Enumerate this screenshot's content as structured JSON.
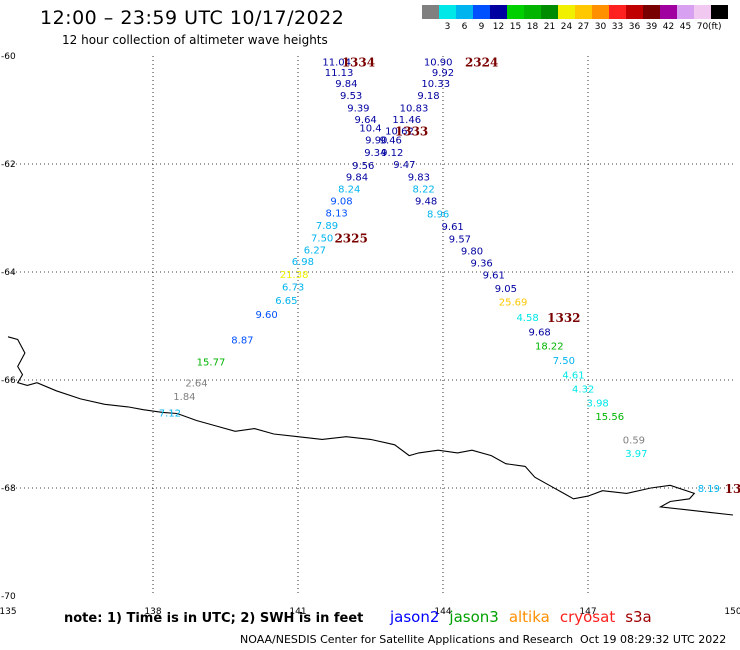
{
  "header": {
    "title": "12:00 – 23:59 UTC 10/17/2022",
    "subtitle": "12 hour collection of altimeter wave heights"
  },
  "color_scale": {
    "unit": "(ft)",
    "bins": [
      {
        "color": "#808080",
        "label": ""
      },
      {
        "color": "#00e8e8",
        "label": "3"
      },
      {
        "color": "#00b4f0",
        "label": "6"
      },
      {
        "color": "#0050ff",
        "label": "9"
      },
      {
        "color": "#0000a0",
        "label": "12"
      },
      {
        "color": "#00d000",
        "label": "15"
      },
      {
        "color": "#00b400",
        "label": "18"
      },
      {
        "color": "#008c00",
        "label": "21"
      },
      {
        "color": "#f0f000",
        "label": "24"
      },
      {
        "color": "#ffc800",
        "label": "27"
      },
      {
        "color": "#ff9000",
        "label": "30"
      },
      {
        "color": "#ff2020",
        "label": "33"
      },
      {
        "color": "#c00000",
        "label": "36"
      },
      {
        "color": "#780000",
        "label": "39"
      },
      {
        "color": "#a000a0",
        "label": "42"
      },
      {
        "color": "#d8a0f0",
        "label": "45"
      },
      {
        "color": "#f0c8f0",
        "label": "70"
      },
      {
        "color": "#000000",
        "label": ""
      }
    ]
  },
  "map": {
    "lon_range": [
      135,
      150
    ],
    "lat_range": [
      -70,
      -60
    ],
    "lon_ticks": [
      "135",
      "138",
      "141",
      "144",
      "147",
      "150"
    ],
    "lat_ticks": [
      "-60",
      "-62",
      "-64",
      "-66",
      "-68",
      "-70"
    ],
    "graticule_lons": [
      138,
      141,
      144,
      147
    ],
    "graticule_lats": [
      -62,
      -64,
      -66,
      -68
    ]
  },
  "observations": [
    {
      "lon": 141.8,
      "lat": -60.1,
      "text": "11.04",
      "color": "#0000a0"
    },
    {
      "lon": 141.85,
      "lat": -60.3,
      "text": "11.13",
      "color": "#0000a0"
    },
    {
      "lon": 142.0,
      "lat": -60.5,
      "text": "9.84",
      "color": "#0000a0"
    },
    {
      "lon": 142.1,
      "lat": -60.72,
      "text": "9.53",
      "color": "#0000a0"
    },
    {
      "lon": 142.25,
      "lat": -60.95,
      "text": "9.39",
      "color": "#0000a0"
    },
    {
      "lon": 142.4,
      "lat": -61.17,
      "text": "9.64",
      "color": "#0000a0"
    },
    {
      "lon": 142.5,
      "lat": -61.32,
      "text": "10.4",
      "color": "#0000a0"
    },
    {
      "lon": 142.62,
      "lat": -61.55,
      "text": "9.90",
      "color": "#0000a0"
    },
    {
      "lon": 142.6,
      "lat": -61.78,
      "text": "9.34",
      "color": "#0000a0"
    },
    {
      "lon": 142.35,
      "lat": -62.02,
      "text": "9.56",
      "color": "#0000a0"
    },
    {
      "lon": 142.22,
      "lat": -62.23,
      "text": "9.84",
      "color": "#0000a0"
    },
    {
      "lon": 142.06,
      "lat": -62.45,
      "text": "8.24",
      "color": "#00b4f0"
    },
    {
      "lon": 141.9,
      "lat": -62.68,
      "text": "9.08",
      "color": "#0050ff"
    },
    {
      "lon": 141.8,
      "lat": -62.9,
      "text": "8.13",
      "color": "#0050ff"
    },
    {
      "lon": 141.6,
      "lat": -63.13,
      "text": "7.89",
      "color": "#00b4f0"
    },
    {
      "lon": 141.5,
      "lat": -63.36,
      "text": "7.50",
      "color": "#00b4f0"
    },
    {
      "lon": 141.35,
      "lat": -63.58,
      "text": "6.27",
      "color": "#00b4f0"
    },
    {
      "lon": 141.1,
      "lat": -63.8,
      "text": "6.98",
      "color": "#00b4f0"
    },
    {
      "lon": 140.92,
      "lat": -64.04,
      "text": "21.38",
      "color": "#f0f000"
    },
    {
      "lon": 140.9,
      "lat": -64.27,
      "text": "6.73",
      "color": "#00b4f0"
    },
    {
      "lon": 140.76,
      "lat": -64.52,
      "text": "6.65",
      "color": "#00b4f0"
    },
    {
      "lon": 140.35,
      "lat": -64.78,
      "text": "9.60",
      "color": "#0050ff"
    },
    {
      "lon": 139.85,
      "lat": -65.25,
      "text": "8.87",
      "color": "#0050ff"
    },
    {
      "lon": 139.2,
      "lat": -65.66,
      "text": "15.77",
      "color": "#00b400"
    },
    {
      "lon": 138.9,
      "lat": -66.05,
      "text": "2.64",
      "color": "#808080"
    },
    {
      "lon": 138.65,
      "lat": -66.3,
      "text": "1.84",
      "color": "#808080"
    },
    {
      "lon": 138.35,
      "lat": -66.6,
      "text": "7.12",
      "color": "#00b4f0"
    },
    {
      "lon": 143.9,
      "lat": -60.1,
      "text": "10.90",
      "color": "#0000a0"
    },
    {
      "lon": 144.0,
      "lat": -60.3,
      "text": "9.92",
      "color": "#0000a0"
    },
    {
      "lon": 143.85,
      "lat": -60.5,
      "text": "10.33",
      "color": "#0000a0"
    },
    {
      "lon": 143.7,
      "lat": -60.72,
      "text": "9.18",
      "color": "#0000a0"
    },
    {
      "lon": 143.4,
      "lat": -60.95,
      "text": "10.83",
      "color": "#0000a0"
    },
    {
      "lon": 143.25,
      "lat": -61.17,
      "text": "11.46",
      "color": "#0000a0"
    },
    {
      "lon": 143.1,
      "lat": -61.38,
      "text": "10.62",
      "color": "#0000a0"
    },
    {
      "lon": 142.92,
      "lat": -61.55,
      "text": "9.46",
      "color": "#0000a0"
    },
    {
      "lon": 142.95,
      "lat": -61.78,
      "text": "9.12",
      "color": "#0000a0"
    },
    {
      "lon": 143.2,
      "lat": -62.0,
      "text": "9.47",
      "color": "#0000a0"
    },
    {
      "lon": 143.5,
      "lat": -62.23,
      "text": "9.83",
      "color": "#0000a0"
    },
    {
      "lon": 143.6,
      "lat": -62.45,
      "text": "8.22",
      "color": "#00b4f0"
    },
    {
      "lon": 143.65,
      "lat": -62.68,
      "text": "9.48",
      "color": "#0000a0"
    },
    {
      "lon": 143.9,
      "lat": -62.92,
      "text": "8.96",
      "color": "#00b4f0"
    },
    {
      "lon": 144.2,
      "lat": -63.15,
      "text": "9.61",
      "color": "#0000a0"
    },
    {
      "lon": 144.35,
      "lat": -63.38,
      "text": "9.57",
      "color": "#0000a0"
    },
    {
      "lon": 144.6,
      "lat": -63.6,
      "text": "9.80",
      "color": "#0000a0"
    },
    {
      "lon": 144.8,
      "lat": -63.82,
      "text": "9.36",
      "color": "#0000a0"
    },
    {
      "lon": 145.05,
      "lat": -64.05,
      "text": "9.61",
      "color": "#0000a0"
    },
    {
      "lon": 145.3,
      "lat": -64.3,
      "text": "9.05",
      "color": "#0000a0"
    },
    {
      "lon": 145.45,
      "lat": -64.55,
      "text": "25.69",
      "color": "#ffc800"
    },
    {
      "lon": 145.75,
      "lat": -64.83,
      "text": "4.58",
      "color": "#00e8e8"
    },
    {
      "lon": 146.0,
      "lat": -65.1,
      "text": "9.68",
      "color": "#0000a0"
    },
    {
      "lon": 146.2,
      "lat": -65.36,
      "text": "18.22",
      "color": "#00b400"
    },
    {
      "lon": 146.5,
      "lat": -65.63,
      "text": "7.50",
      "color": "#00b4f0"
    },
    {
      "lon": 146.7,
      "lat": -65.9,
      "text": "4.61",
      "color": "#00e8e8"
    },
    {
      "lon": 146.9,
      "lat": -66.16,
      "text": "4.32",
      "color": "#00e8e8"
    },
    {
      "lon": 147.2,
      "lat": -66.42,
      "text": "3.98",
      "color": "#00e8e8"
    },
    {
      "lon": 147.45,
      "lat": -66.67,
      "text": "15.56",
      "color": "#00b400"
    },
    {
      "lon": 147.95,
      "lat": -67.1,
      "text": "0.59",
      "color": "#808080"
    },
    {
      "lon": 148.0,
      "lat": -67.35,
      "text": "3.97",
      "color": "#00e8e8"
    },
    {
      "lon": 149.5,
      "lat": -68.0,
      "text": "8.19",
      "color": "#00b4f0"
    }
  ],
  "time_labels": [
    {
      "lon": 142.25,
      "lat": -60.1,
      "text": "1334"
    },
    {
      "lon": 144.8,
      "lat": -60.1,
      "text": "2324"
    },
    {
      "lon": 143.35,
      "lat": -61.38,
      "text": "1333"
    },
    {
      "lon": 142.1,
      "lat": -63.36,
      "text": "2325"
    },
    {
      "lon": 146.5,
      "lat": -64.83,
      "text": "1332"
    },
    {
      "lon": 150.0,
      "lat": -68.0,
      "text": "13"
    }
  ],
  "coastline": [
    [
      135,
      -65.2
    ],
    [
      135.2,
      -65.25
    ],
    [
      135.35,
      -65.5
    ],
    [
      135.2,
      -65.75
    ],
    [
      135.3,
      -65.9
    ],
    [
      135.2,
      -66.05
    ],
    [
      135.4,
      -66.1
    ],
    [
      135.6,
      -66.05
    ],
    [
      136.0,
      -66.2
    ],
    [
      136.5,
      -66.35
    ],
    [
      137.0,
      -66.45
    ],
    [
      137.5,
      -66.5
    ],
    [
      137.8,
      -66.55
    ],
    [
      138.2,
      -66.6
    ],
    [
      138.5,
      -66.62
    ],
    [
      138.9,
      -66.75
    ],
    [
      139.3,
      -66.85
    ],
    [
      139.7,
      -66.95
    ],
    [
      140.1,
      -66.9
    ],
    [
      140.5,
      -67.0
    ],
    [
      141.0,
      -67.05
    ],
    [
      141.5,
      -67.1
    ],
    [
      142.0,
      -67.05
    ],
    [
      142.5,
      -67.1
    ],
    [
      143.0,
      -67.2
    ],
    [
      143.3,
      -67.4
    ],
    [
      143.5,
      -67.35
    ],
    [
      143.9,
      -67.3
    ],
    [
      144.3,
      -67.35
    ],
    [
      144.6,
      -67.3
    ],
    [
      145.0,
      -67.4
    ],
    [
      145.3,
      -67.55
    ],
    [
      145.7,
      -67.6
    ],
    [
      145.9,
      -67.8
    ],
    [
      146.2,
      -67.95
    ],
    [
      146.5,
      -68.1
    ],
    [
      146.7,
      -68.2
    ],
    [
      147.0,
      -68.15
    ],
    [
      147.3,
      -68.05
    ],
    [
      147.8,
      -68.1
    ],
    [
      148.3,
      -68.0
    ],
    [
      148.7,
      -67.95
    ],
    [
      149.2,
      -68.1
    ],
    [
      149.1,
      -68.2
    ],
    [
      148.7,
      -68.25
    ],
    [
      148.5,
      -68.35
    ],
    [
      149.0,
      -68.4
    ],
    [
      149.5,
      -68.45
    ],
    [
      150.0,
      -68.5
    ]
  ],
  "footer": {
    "note": "note:  1) Time is in UTC;  2) SWH is in feet",
    "missions": [
      {
        "name": "jason2",
        "color": "#0000ff"
      },
      {
        "name": "jason3",
        "color": "#00a000"
      },
      {
        "name": "altika",
        "color": "#ff9000"
      },
      {
        "name": "cryosat",
        "color": "#ff2020"
      },
      {
        "name": "s3a",
        "color": "#a00000"
      }
    ],
    "credit": "NOAA/NESDIS Center for Satellite Applications and Research",
    "timestamp": "Oct 19 08:29:32 UTC 2022"
  }
}
